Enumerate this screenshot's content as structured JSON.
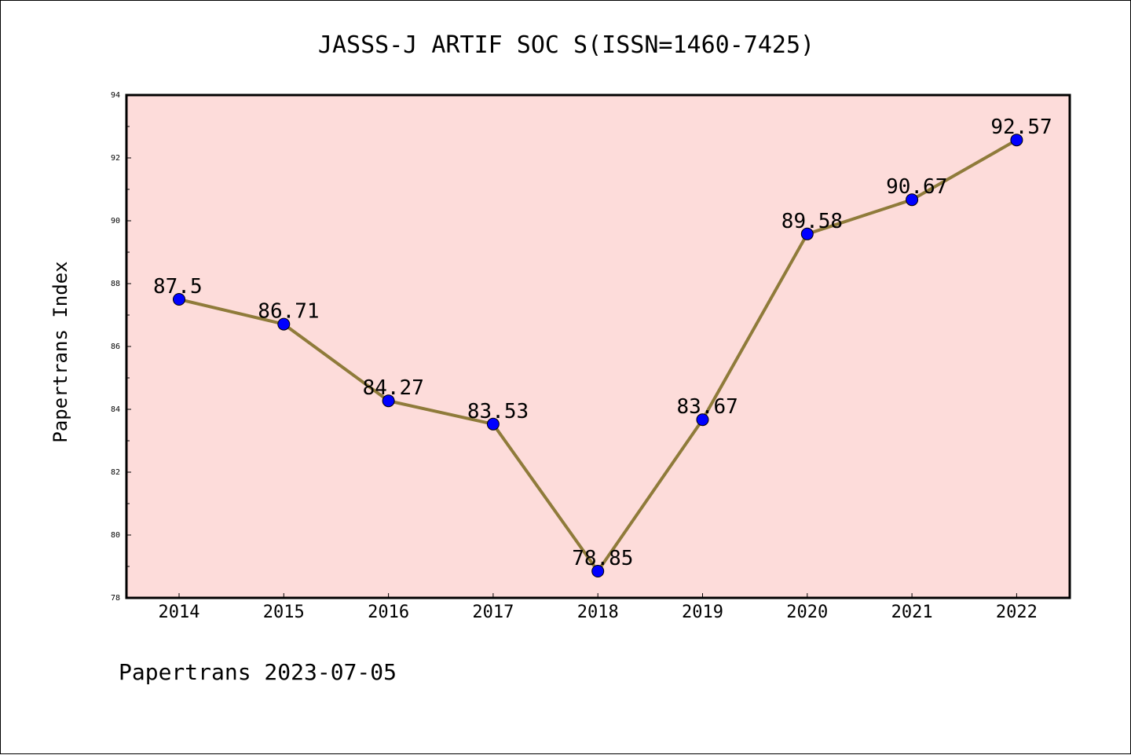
{
  "chart_data": {
    "type": "line",
    "title": "JASSS-J ARTIF SOC S(ISSN=1460-7425)",
    "xlabel": "",
    "ylabel": "Papertrans Index",
    "categories": [
      "2014",
      "2015",
      "2016",
      "2017",
      "2018",
      "2019",
      "2020",
      "2021",
      "2022"
    ],
    "series": [
      {
        "values": [
          87.5,
          86.71,
          84.27,
          83.53,
          78.85,
          83.67,
          89.58,
          90.67,
          92.57
        ],
        "labels": [
          "87.5",
          "86.71",
          "84.27",
          "83.53",
          "78.85",
          "83.67",
          "89.58",
          "90.67",
          "92.57"
        ]
      }
    ],
    "ylim": [
      78,
      94
    ],
    "yticks": [
      "78",
      "80",
      "82",
      "84",
      "86",
      "88",
      "90",
      "92",
      "94"
    ],
    "grid": false,
    "legend": "none",
    "footer": "Papertrans 2023-07-05",
    "colors": {
      "plot_background": "#fddcda",
      "line": "#8f7b3a",
      "marker": "#0000ff",
      "axis": "#000000"
    }
  }
}
